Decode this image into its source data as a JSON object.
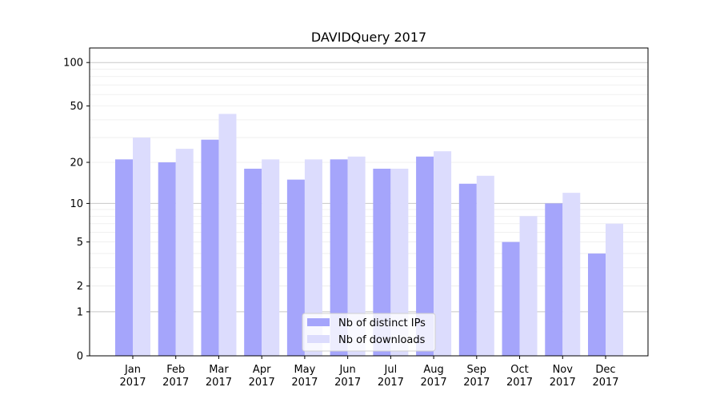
{
  "chart_data": {
    "type": "bar",
    "title": "DAVIDQuery 2017",
    "xlabel": "",
    "ylabel": "",
    "yscale": "log(1+y)",
    "ylim": [
      0,
      126
    ],
    "yticks": [
      0,
      1,
      2,
      5,
      10,
      20,
      50,
      100
    ],
    "ytick_labels": [
      "0",
      "1",
      "2",
      "5",
      "10",
      "20",
      "50",
      "100"
    ],
    "grid": true,
    "legend_position": "bottom-center",
    "categories": [
      "Jan\n2017",
      "Feb\n2017",
      "Mar\n2017",
      "Apr\n2017",
      "May\n2017",
      "Jun\n2017",
      "Jul\n2017",
      "Aug\n2017",
      "Sep\n2017",
      "Oct\n2017",
      "Nov\n2017",
      "Dec\n2017"
    ],
    "series": [
      {
        "name": "Nb of distinct IPs",
        "color": "#a5a5fb",
        "values": [
          21,
          20,
          29,
          18,
          15,
          21,
          18,
          22,
          14,
          5,
          10,
          4
        ]
      },
      {
        "name": "Nb of downloads",
        "color": "#dcdcfd",
        "values": [
          30,
          25,
          44,
          21,
          21,
          22,
          18,
          24,
          16,
          8,
          12,
          7
        ]
      }
    ]
  }
}
